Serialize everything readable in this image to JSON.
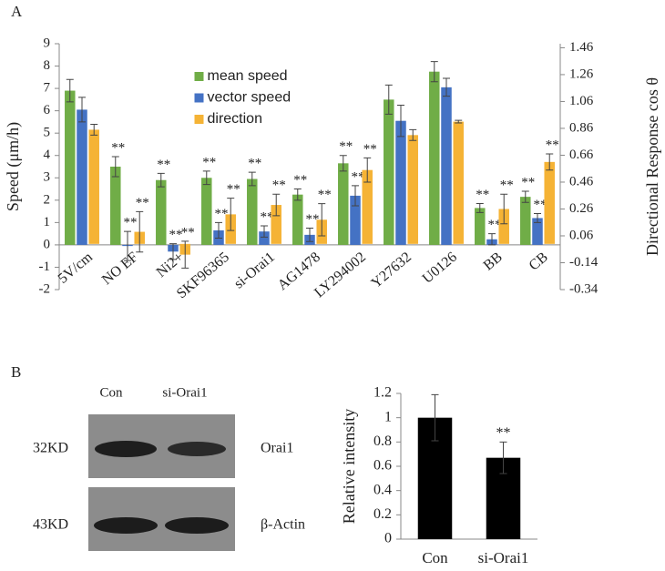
{
  "panel_labels": [
    "A",
    "B"
  ],
  "chart_data": [
    {
      "type": "bar",
      "ylabel": "Speed (μm/h)",
      "y2label": "Directional Response cos θ",
      "categories": [
        "5V/cm",
        "NO EF",
        "Ni2+",
        "SKF96365",
        "si-Orai1",
        "AG1478",
        "LY294002",
        "Y27632",
        "U0126",
        "BB",
        "CB"
      ],
      "series": [
        {
          "name": "mean speed",
          "color": "#70ad47",
          "values": [
            6.9,
            3.5,
            2.9,
            3.0,
            2.95,
            2.25,
            3.65,
            6.5,
            7.75,
            1.65,
            2.15
          ],
          "errors": [
            0.5,
            0.45,
            0.3,
            0.3,
            0.3,
            0.25,
            0.35,
            0.65,
            0.45,
            0.2,
            0.25
          ],
          "annotations": [
            null,
            "**",
            "**",
            "**",
            "**",
            "**",
            "**",
            null,
            null,
            "**",
            "**"
          ]
        },
        {
          "name": "vector speed",
          "color": "#4472c4",
          "values": [
            6.05,
            -0.05,
            -0.3,
            0.65,
            0.6,
            0.45,
            2.2,
            5.55,
            7.05,
            0.25,
            1.2
          ],
          "errors": [
            0.55,
            0.65,
            0.35,
            0.35,
            0.25,
            0.3,
            0.45,
            0.7,
            0.4,
            0.25,
            0.2
          ],
          "annotations": [
            null,
            "**",
            "**",
            "**",
            "**",
            "**",
            "**",
            null,
            null,
            "**",
            "**"
          ]
        },
        {
          "name": "direction",
          "color": "#f5b335",
          "axis": "y2",
          "values": [
            0.85,
            0.09,
            -0.08,
            0.22,
            0.29,
            0.18,
            0.55,
            0.81,
            0.91,
            0.26,
            0.61
          ],
          "errors": [
            0.04,
            0.15,
            0.1,
            0.12,
            0.08,
            0.12,
            0.09,
            0.04,
            0.01,
            0.11,
            0.06
          ],
          "annotations": [
            null,
            "**",
            "**",
            "**",
            "**",
            "**",
            "**",
            null,
            null,
            "**",
            "**"
          ]
        }
      ],
      "ylim": [
        -2,
        9
      ],
      "yticks": [
        -2,
        -1,
        0,
        1,
        2,
        3,
        4,
        5,
        6,
        7,
        8,
        9
      ],
      "y2lim": [
        -0.34,
        1.49
      ],
      "y2ticks": [
        -0.34,
        -0.14,
        0.06,
        0.26,
        0.46,
        0.66,
        0.86,
        1.06,
        1.26,
        1.46
      ],
      "legend": "upper center"
    },
    {
      "type": "bar",
      "ylabel": "Relative  intensity",
      "categories": [
        "Con",
        "si-Orai1"
      ],
      "values": [
        1.0,
        0.67
      ],
      "errors": [
        0.19,
        0.13
      ],
      "annotations": [
        null,
        "**"
      ],
      "color": "#000000",
      "ylim": [
        0,
        1.2
      ],
      "yticks": [
        0,
        0.2,
        0.4,
        0.6,
        0.8,
        1,
        1.2
      ]
    }
  ],
  "blot": {
    "lanes": [
      "Con",
      "si-Orai1"
    ],
    "rows": [
      {
        "size": "32KD",
        "protein": "Orai1"
      },
      {
        "size": "43KD",
        "protein": "β-Actin"
      }
    ]
  }
}
